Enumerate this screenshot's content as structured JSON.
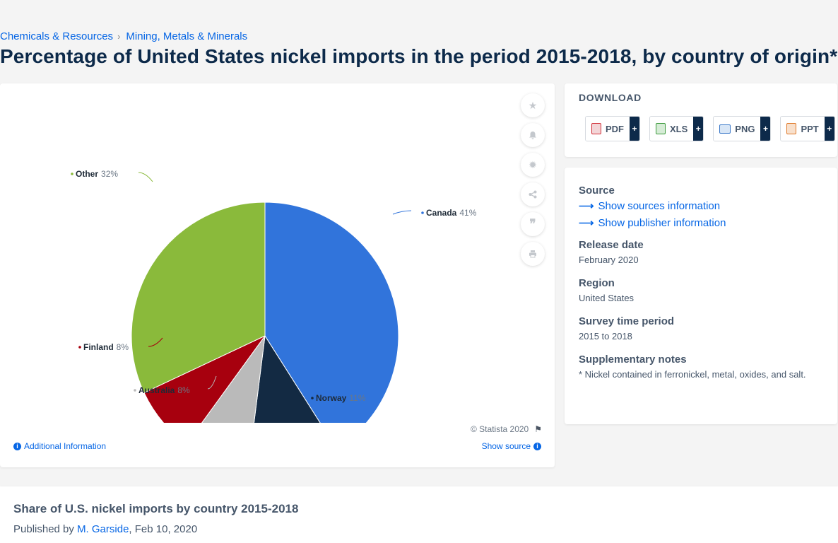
{
  "breadcrumb": {
    "first": "Chemicals & Resources",
    "second": "Mining, Metals & Minerals"
  },
  "page_title": "Percentage of United States nickel imports in the period 2015-2018, by country of origin*",
  "chart_data": {
    "type": "pie",
    "title": "",
    "slices": [
      {
        "label": "Canada",
        "value": 41,
        "color": "#3174db"
      },
      {
        "label": "Norway",
        "value": 11,
        "color": "#132a43"
      },
      {
        "label": "Australia",
        "value": 8,
        "color": "#bababa"
      },
      {
        "label": "Finland",
        "value": 8,
        "color": "#a7000e"
      },
      {
        "label": "Other",
        "value": 32,
        "color": "#8aba3b"
      }
    ],
    "unit": "%"
  },
  "chart_footer": {
    "copyright": "© Statista 2020",
    "additional_info": "Additional Information",
    "show_source": "Show source"
  },
  "toolbar": {
    "icons": [
      "star-icon",
      "bell-icon",
      "gear-icon",
      "share-icon",
      "quote-icon",
      "print-icon"
    ]
  },
  "download": {
    "title": "DOWNLOAD",
    "buttons": [
      {
        "label": "PDF",
        "color": "#d2313a"
      },
      {
        "label": "XLS",
        "color": "#3c9a3c"
      },
      {
        "label": "PNG",
        "color": "#3a78c9"
      },
      {
        "label": "PPT",
        "color": "#e07a2a"
      }
    ],
    "plus": "+"
  },
  "info": {
    "source_heading": "Source",
    "source_link": "Show sources information",
    "publisher_link": "Show publisher information",
    "release_heading": "Release date",
    "release_value": "February 2020",
    "region_heading": "Region",
    "region_value": "United States",
    "survey_heading": "Survey time period",
    "survey_value": "2015 to 2018",
    "notes_heading": "Supplementary notes",
    "notes_value": "* Nickel contained in ferronickel, metal, oxides, and salt."
  },
  "bottom": {
    "title": "Share of U.S. nickel imports by country 2015-2018",
    "published_prefix": "Published by",
    "author": "M. Garside",
    "date": ", Feb 10, 2020"
  }
}
